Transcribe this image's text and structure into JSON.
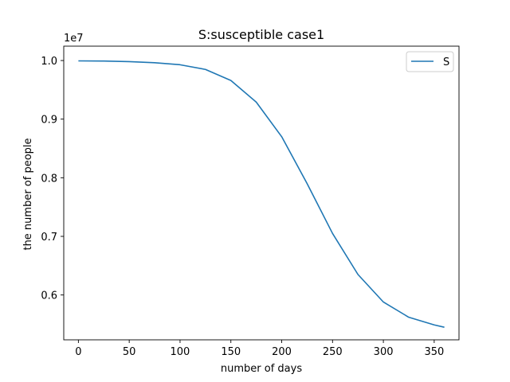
{
  "chart_data": {
    "type": "line",
    "title": "S:susceptible  case1",
    "xlabel": "number of days",
    "ylabel": "the number of people",
    "y_offset_label": "1e7",
    "xlim": [
      -14.4,
      374.4
    ],
    "ylim": [
      0.5235,
      1.0245
    ],
    "xticks": [
      0,
      50,
      100,
      150,
      200,
      250,
      300,
      350
    ],
    "xtick_labels": [
      "0",
      "50",
      "100",
      "150",
      "200",
      "250",
      "300",
      "350"
    ],
    "yticks": [
      0.6,
      0.7,
      0.8,
      0.9,
      1.0
    ],
    "ytick_labels": [
      "0.6",
      "0.7",
      "0.8",
      "0.9",
      "1.0"
    ],
    "grid": false,
    "legend_position": "top-right",
    "series": [
      {
        "name": "S",
        "color": "#1f77b4",
        "x": [
          0,
          25,
          50,
          75,
          100,
          125,
          150,
          175,
          200,
          225,
          250,
          275,
          300,
          325,
          350,
          360
        ],
        "y": [
          0.9994,
          0.9991,
          0.9981,
          0.9963,
          0.9928,
          0.9848,
          0.966,
          0.929,
          0.87,
          0.79,
          0.705,
          0.635,
          0.588,
          0.562,
          0.549,
          0.545
        ]
      }
    ]
  }
}
